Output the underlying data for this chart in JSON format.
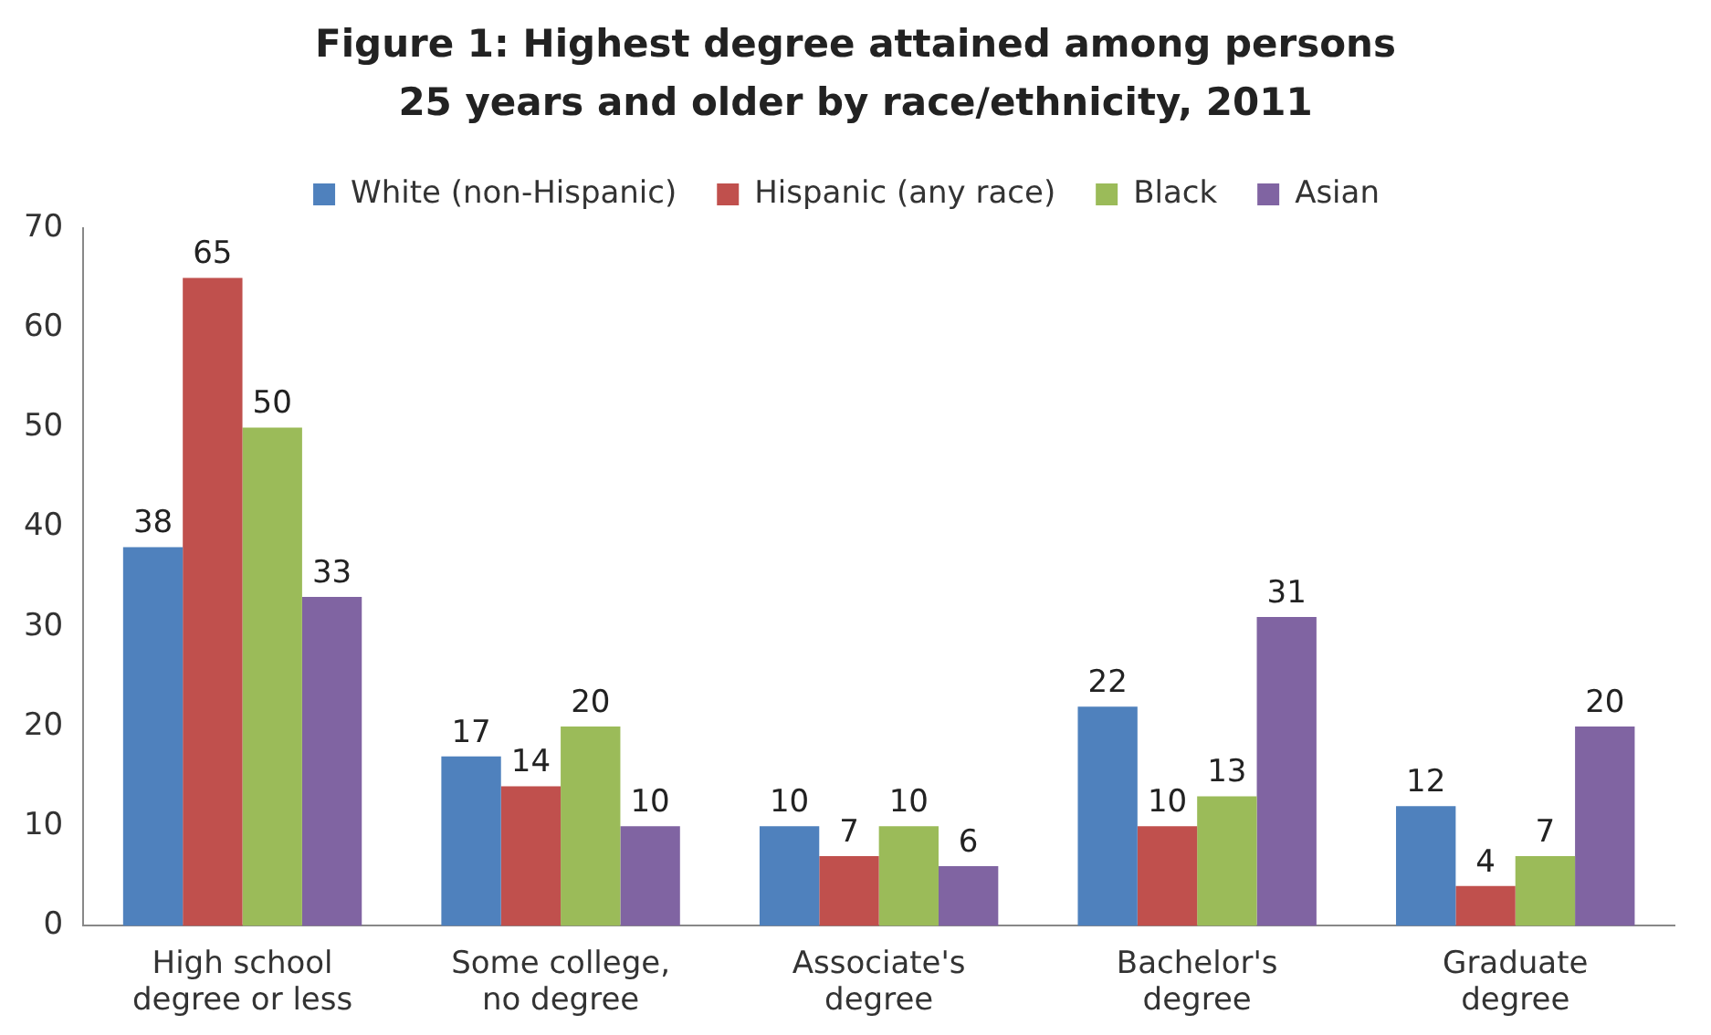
{
  "chart_data": {
    "type": "bar",
    "title": "Figure 1: Highest degree attained among persons 25 years and older by race/ethnicity, 2011",
    "categories": [
      "High school degree or less",
      "Some college, no degree",
      "Associate's degree",
      "Bachelor's degree",
      "Graduate degree"
    ],
    "series": [
      {
        "name": "White (non-Hispanic)",
        "color": "#4f81bd",
        "values": [
          38,
          17,
          10,
          22,
          12
        ]
      },
      {
        "name": "Hispanic (any race)",
        "color": "#c0504d",
        "values": [
          65,
          14,
          7,
          10,
          4
        ]
      },
      {
        "name": "Black",
        "color": "#9bbb59",
        "values": [
          50,
          20,
          10,
          13,
          7
        ]
      },
      {
        "name": "Asian",
        "color": "#8064a2",
        "values": [
          33,
          10,
          6,
          31,
          20
        ]
      }
    ],
    "ylim": [
      0,
      70
    ],
    "yticks": [
      0,
      10,
      20,
      30,
      40,
      50,
      60,
      70
    ],
    "grid": false,
    "legend": "top",
    "data_labels": true
  }
}
